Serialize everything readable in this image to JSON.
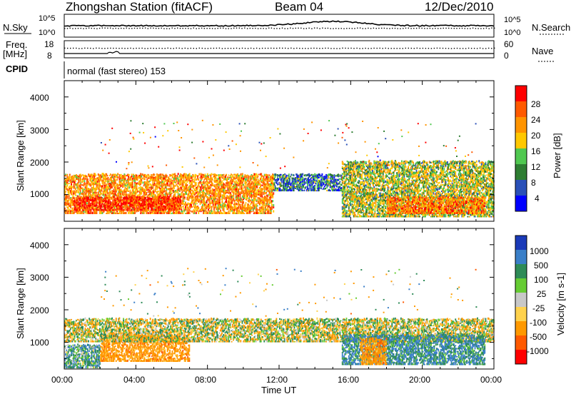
{
  "header": {
    "station": "Zhongshan Station (fitACF)",
    "beam": "Beam 04",
    "date": "12/Dec/2010"
  },
  "top_panel": {
    "left_label": "N.Sky",
    "right_label": "N.Search",
    "left_ticks": [
      "10^5",
      "10^0"
    ],
    "right_ticks": [
      "10^5",
      "10^0"
    ]
  },
  "freq_panel": {
    "left_label_top": "Freq.",
    "left_label_bottom": "[MHz]",
    "right_label": "Nave",
    "left_ticks": [
      "18",
      "8"
    ],
    "right_ticks": [
      "60",
      "0"
    ]
  },
  "cpid_panel": {
    "label": "CPID",
    "text": "normal (fast stereo) 153"
  },
  "x_axis": {
    "title": "Time UT",
    "ticks": [
      "00:00",
      "04:00",
      "08:00",
      "12:00",
      "16:00",
      "20:00",
      "00:00"
    ]
  },
  "power_panel": {
    "ylabel": "Slant Range [km]",
    "yticks": [
      "4000",
      "3000",
      "2000",
      "1000"
    ],
    "colorbar_title": "Power [dB]",
    "colorbar_labels": [
      "28",
      "24",
      "20",
      "16",
      "12",
      "8",
      "4"
    ],
    "colors": [
      "#ff0000",
      "#ff5a00",
      "#ff9400",
      "#ffc800",
      "#50c850",
      "#2e7d32",
      "#2a50b8",
      "#0000ff"
    ]
  },
  "velocity_panel": {
    "ylabel": "Slant Range [km]",
    "yticks": [
      "4000",
      "3000",
      "2000",
      "1000"
    ],
    "colorbar_title": "Velocity [m s-1]",
    "colorbar_labels": [
      "1000",
      "500",
      "100",
      "25",
      "-25",
      "-100",
      "-500",
      "-1000"
    ],
    "colors": [
      "#1a3ab8",
      "#3a7fc8",
      "#2e8b57",
      "#66cc33",
      "#c8c8c8",
      "#ffd24d",
      "#ff9900",
      "#ff5a00",
      "#ff0000"
    ]
  },
  "chart_data": [
    {
      "type": "heatmap",
      "title": "Power",
      "xlabel": "Time UT",
      "ylabel": "Slant Range [km]",
      "xlim": [
        "00:00",
        "24:00"
      ],
      "ylim": [
        180,
        4500
      ],
      "colorbar": {
        "label": "Power [dB]",
        "range": [
          0,
          30
        ],
        "ticks": [
          4,
          8,
          12,
          16,
          20,
          24,
          28
        ]
      },
      "scatter_bands": [
        {
          "t0": 0.0,
          "t1": 11.7,
          "r0": 400,
          "r1": 1600,
          "value": 20
        },
        {
          "t0": 0.5,
          "t1": 6.5,
          "r0": 500,
          "r1": 900,
          "value": 27
        },
        {
          "t0": 11.7,
          "t1": 15.5,
          "r0": 1100,
          "r1": 1600,
          "value": 8
        },
        {
          "t0": 15.5,
          "t1": 24.0,
          "r0": 300,
          "r1": 2000,
          "value": 14
        },
        {
          "t0": 18.0,
          "t1": 23.5,
          "r0": 400,
          "r1": 900,
          "value": 22
        }
      ]
    },
    {
      "type": "heatmap",
      "title": "Velocity",
      "xlabel": "Time UT",
      "ylabel": "Slant Range [km]",
      "xlim": [
        "00:00",
        "24:00"
      ],
      "ylim": [
        180,
        4500
      ],
      "colorbar": {
        "label": "Velocity [m s-1]",
        "ticks": [
          -1000,
          -500,
          -100,
          -25,
          25,
          100,
          500,
          1000
        ]
      },
      "scatter_bands": [
        {
          "t0": 0.0,
          "t1": 2.0,
          "r0": 200,
          "r1": 900,
          "value": 200
        },
        {
          "t0": 2.0,
          "t1": 7.0,
          "r0": 400,
          "r1": 1200,
          "value": -300
        },
        {
          "t0": 0.0,
          "t1": 24.0,
          "r0": 1000,
          "r1": 1700,
          "value": 0
        },
        {
          "t0": 15.5,
          "t1": 23.5,
          "r0": 300,
          "r1": 1200,
          "value": 300
        },
        {
          "t0": 16.5,
          "t1": 18.0,
          "r0": 300,
          "r1": 1100,
          "value": -300
        }
      ]
    }
  ]
}
